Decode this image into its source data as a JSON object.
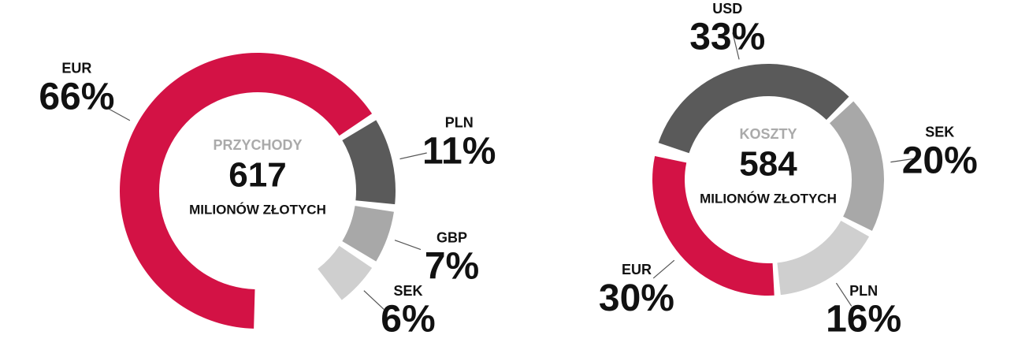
{
  "chart_data": [
    {
      "type": "pie",
      "title": "PRZYCHODY",
      "total": 617,
      "unit": "MILIONÓW ZŁOTYCH",
      "categories": [
        "EUR",
        "PLN",
        "GBP",
        "SEK"
      ],
      "values": [
        66,
        11,
        7,
        6
      ],
      "value_labels": [
        "66%",
        "11%",
        "7%",
        "6%"
      ],
      "colors": [
        "#d31245",
        "#5a5a5a",
        "#a8a8a8",
        "#cfcfcf"
      ]
    },
    {
      "type": "pie",
      "title": "KOSZTY",
      "total": 584,
      "unit": "MILIONÓW ZŁOTYCH",
      "categories": [
        "USD",
        "SEK",
        "PLN",
        "EUR"
      ],
      "values": [
        33,
        20,
        16,
        30
      ],
      "value_labels": [
        "33%",
        "20%",
        "16%",
        "30%"
      ],
      "colors": [
        "#5a5a5a",
        "#a8a8a8",
        "#cfcfcf",
        "#d31245"
      ]
    }
  ]
}
